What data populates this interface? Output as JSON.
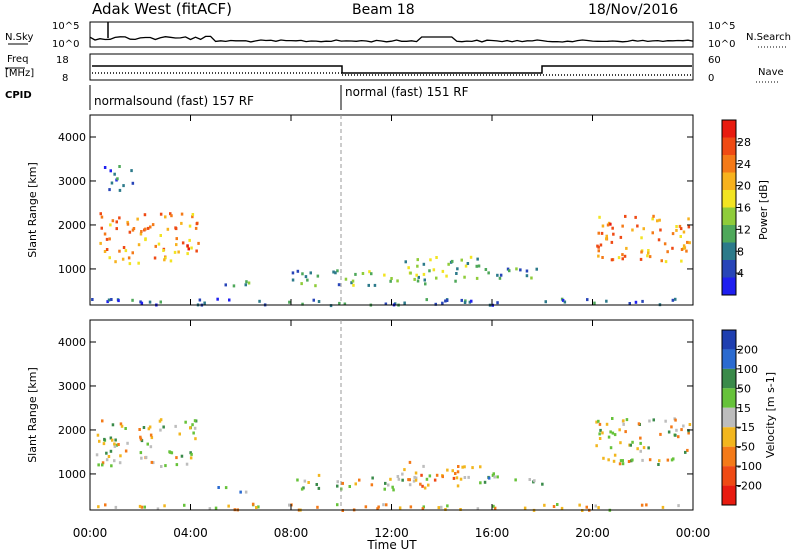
{
  "header": {
    "title": "Adak West (fitACF)",
    "beam": "Beam 18",
    "date": "18/Nov/2016"
  },
  "noise_panel": {
    "left_label": "N.Sky",
    "right_label": "N.Search",
    "left_ticks": [
      "10^5",
      "10^0"
    ],
    "right_ticks": [
      "10^5",
      "10^0"
    ]
  },
  "freq_panel": {
    "left_label_1": "Freq",
    "left_label_2": "[MHz]",
    "right_label": "Nave",
    "left_ticks": [
      "18",
      "8"
    ],
    "right_ticks": [
      "60",
      "0"
    ]
  },
  "cpid": {
    "label": "CPID",
    "segments": [
      {
        "name": "normalsound (fast) 157 RF",
        "start": 0,
        "end": 10
      },
      {
        "name": "normal (fast) 151 RF",
        "start": 10,
        "end": 24
      }
    ]
  },
  "axes": {
    "x_ticks": [
      "00:00",
      "04:00",
      "08:00",
      "12:00",
      "16:00",
      "20:00",
      "00:00"
    ],
    "xlabel": "Time UT",
    "ylabel": "Slant Range [km]",
    "y_ticks": [
      "1000",
      "2000",
      "3000",
      "4000"
    ]
  },
  "power_colorbar": {
    "label": "Power [dB]",
    "ticks": [
      "4",
      "8",
      "12",
      "16",
      "20",
      "24",
      "28"
    ],
    "colors": [
      "#1f1ff0",
      "#2845b8",
      "#2c7a8a",
      "#4ea85a",
      "#8fcc3a",
      "#f2e422",
      "#f7b21e",
      "#f47a18",
      "#ef4a14",
      "#e81b10"
    ]
  },
  "velocity_colorbar": {
    "label": "Velocity [m s-1]",
    "ticks": [
      "200",
      "100",
      "50",
      "15",
      "-15",
      "-50",
      "-100",
      "-200"
    ],
    "colors": [
      "#1f3fb0",
      "#2a6ad0",
      "#3a8a4a",
      "#66c23a",
      "#bdbdbd",
      "#f2b61e",
      "#f47a18",
      "#ef4a14",
      "#e81b10"
    ]
  },
  "chart_data": {
    "type": "heatmap",
    "x_range_hours": [
      0,
      24
    ],
    "y_range_km": [
      180,
      4500
    ],
    "panels": [
      {
        "name": "Power",
        "regions": [
          {
            "t0": 0.2,
            "t1": 4.3,
            "r0": 1150,
            "r1": 2300,
            "value_db": 22
          },
          {
            "t0": 0.5,
            "t1": 1.7,
            "r0": 2800,
            "r1": 3400,
            "value_db": 8
          },
          {
            "t0": 4.7,
            "t1": 6.5,
            "r0": 600,
            "r1": 750,
            "value_db": 10
          },
          {
            "t0": 8.0,
            "t1": 13.5,
            "r0": 650,
            "r1": 1000,
            "value_db": 10
          },
          {
            "t0": 12.0,
            "t1": 15.5,
            "r0": 750,
            "r1": 1300,
            "value_db": 12
          },
          {
            "t0": 15.0,
            "t1": 18.0,
            "r0": 800,
            "r1": 1050,
            "value_db": 9
          },
          {
            "t0": 20.1,
            "t1": 23.9,
            "r0": 1200,
            "r1": 2300,
            "value_db": 22
          },
          {
            "t0": 0,
            "t1": 24,
            "r0": 200,
            "r1": 350,
            "value_db": 6
          }
        ]
      },
      {
        "name": "Velocity",
        "regions": [
          {
            "t0": 0.2,
            "t1": 4.3,
            "r0": 1200,
            "r1": 2300,
            "value_ms": 0
          },
          {
            "t0": 5.0,
            "t1": 6.5,
            "r0": 600,
            "r1": 750,
            "value_ms": 60
          },
          {
            "t0": 8.0,
            "t1": 13.5,
            "r0": 650,
            "r1": 1000,
            "value_ms": 0
          },
          {
            "t0": 12.0,
            "t1": 15.5,
            "r0": 750,
            "r1": 1300,
            "value_ms": -60
          },
          {
            "t0": 15.0,
            "t1": 18.0,
            "r0": 800,
            "r1": 1050,
            "value_ms": 60
          },
          {
            "t0": 20.1,
            "t1": 23.9,
            "r0": 1200,
            "r1": 2300,
            "value_ms": 0
          },
          {
            "t0": 0,
            "t1": 24,
            "r0": 200,
            "r1": 350,
            "value_ms": -30
          }
        ]
      }
    ]
  }
}
